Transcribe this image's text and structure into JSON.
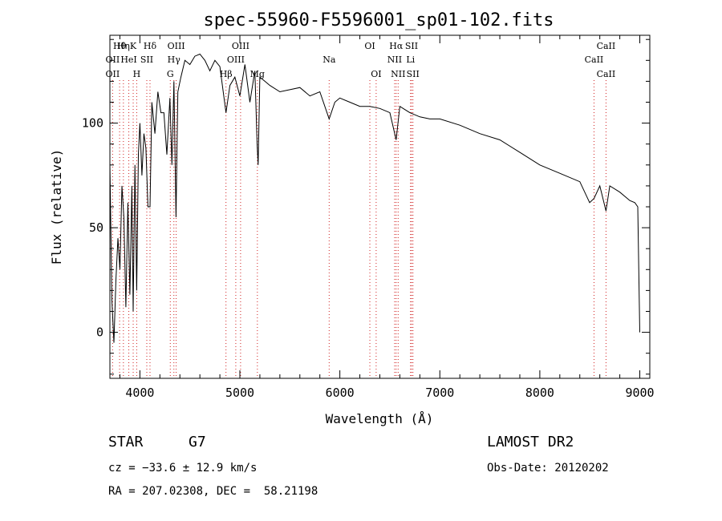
{
  "chart_data": {
    "type": "line",
    "title": "spec-55960-F5596001_sp01-102.fits",
    "xlabel": "Wavelength (Å)",
    "ylabel": "Flux (relative)",
    "xlim": [
      3700,
      9100
    ],
    "ylim": [
      -22,
      142
    ],
    "xticks": [
      4000,
      5000,
      6000,
      7000,
      8000,
      9000
    ],
    "yticks": [
      0,
      50,
      100
    ],
    "series": [
      {
        "x": [
          3700,
          3720,
          3740,
          3760,
          3780,
          3800,
          3820,
          3840,
          3860,
          3880,
          3900,
          3920,
          3933,
          3950,
          3968,
          3985,
          4000,
          4020,
          4040,
          4060,
          4080,
          4101,
          4120,
          4150,
          4180,
          4210,
          4240,
          4270,
          4300,
          4320,
          4340,
          4361,
          4380,
          4410,
          4450,
          4500,
          4550,
          4600,
          4650,
          4700,
          4750,
          4800,
          4861,
          4900,
          4950,
          5000,
          5050,
          5100,
          5150,
          5172,
          5183,
          5200,
          5250,
          5300,
          5400,
          5500,
          5600,
          5700,
          5800,
          5893,
          5950,
          6000,
          6100,
          6200,
          6300,
          6400,
          6500,
          6563,
          6600,
          6700,
          6800,
          6900,
          7000,
          7200,
          7400,
          7600,
          7800,
          8000,
          8200,
          8400,
          8498,
          8542,
          8600,
          8662,
          8700,
          8800,
          8900,
          8950,
          8980,
          9000
        ],
        "y": [
          80,
          15,
          -5,
          25,
          45,
          30,
          70,
          55,
          12,
          62,
          18,
          70,
          10,
          80,
          20,
          85,
          100,
          75,
          95,
          88,
          60,
          60,
          110,
          95,
          115,
          105,
          105,
          85,
          112,
          80,
          120,
          55,
          115,
          122,
          130,
          128,
          132,
          133,
          130,
          125,
          130,
          127,
          105,
          118,
          122,
          113,
          128,
          110,
          125,
          90,
          80,
          122,
          120,
          118,
          115,
          116,
          117,
          113,
          115,
          102,
          110,
          112,
          110,
          108,
          108,
          107,
          105,
          92,
          108,
          105,
          103,
          102,
          102,
          99,
          95,
          92,
          86,
          80,
          76,
          72,
          62,
          64,
          70,
          58,
          70,
          67,
          63,
          62,
          60,
          0
        ]
      }
    ],
    "line_markers": [
      {
        "name": "Hθ",
        "x": 3797
      },
      {
        "name": "OII",
        "x": 3727
      },
      {
        "name": "OII",
        "x": 3727
      },
      {
        "name": "Hη",
        "x": 3835
      },
      {
        "name": "HeI",
        "x": 3889
      },
      {
        "name": "K",
        "x": 3933
      },
      {
        "name": "SII",
        "x": 4069
      },
      {
        "name": "H",
        "x": 3968
      },
      {
        "name": "Hδ",
        "x": 4101
      },
      {
        "name": "OIII",
        "x": 4363
      },
      {
        "name": "Hγ",
        "x": 4340
      },
      {
        "name": "G",
        "x": 4304
      },
      {
        "name": "OIII",
        "x": 5007
      },
      {
        "name": "OIII",
        "x": 4959
      },
      {
        "name": "Hβ",
        "x": 4861
      },
      {
        "name": "Mg",
        "x": 5175
      },
      {
        "name": "Na",
        "x": 5893
      },
      {
        "name": "OI",
        "x": 6300
      },
      {
        "name": "OI",
        "x": 6363
      },
      {
        "name": "Hα",
        "x": 6563
      },
      {
        "name": "SII",
        "x": 6717
      },
      {
        "name": "NII",
        "x": 6548
      },
      {
        "name": "Li",
        "x": 6707
      },
      {
        "name": "NII",
        "x": 6583
      },
      {
        "name": "SII",
        "x": 6731
      },
      {
        "name": "CaII",
        "x": 8662
      },
      {
        "name": "CaII",
        "x": 8542
      },
      {
        "name": "CaII",
        "x": 8662
      }
    ]
  },
  "info": {
    "object_class": "STAR",
    "subclass": "G7",
    "survey": "LAMOST DR2",
    "cz": "cz = −33.6 ± 12.9 km/s",
    "obs_date": "Obs-Date: 20120202",
    "coords": "RA = 207.02308, DEC =  58.21198"
  }
}
